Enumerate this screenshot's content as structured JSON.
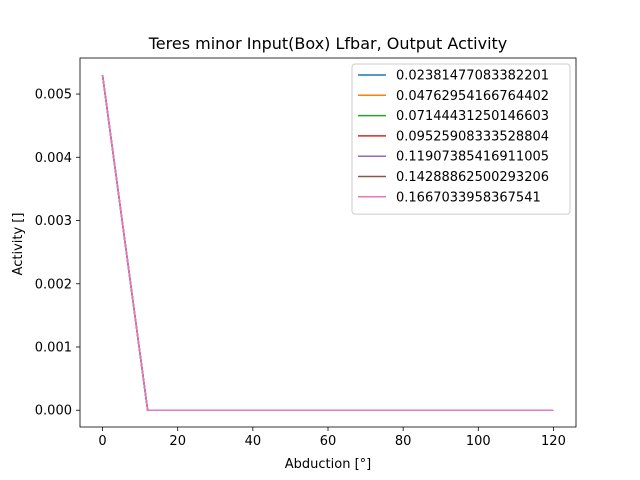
{
  "chart_data": {
    "type": "line",
    "title": "Teres minor Input(Box) Lfbar, Output Activity",
    "xlabel": "Abduction [°]",
    "ylabel": "Activity []",
    "xlim": [
      -6,
      126
    ],
    "ylim": [
      -0.000265,
      0.00557
    ],
    "x_ticks": [
      0,
      20,
      40,
      60,
      80,
      100,
      120
    ],
    "y_ticks": [
      0.0,
      0.001,
      0.002,
      0.003,
      0.004,
      0.005
    ],
    "y_tick_labels": [
      "0.000",
      "0.001",
      "0.002",
      "0.003",
      "0.004",
      "0.005"
    ],
    "grid": false,
    "legend_position": "top-right",
    "x": [
      0,
      12,
      120
    ],
    "series": [
      {
        "name": "0.02381477083382201",
        "color": "#1f77b4",
        "values": [
          0.0053,
          0.0,
          0.0
        ]
      },
      {
        "name": "0.04762954166764402",
        "color": "#ff7f0e",
        "values": [
          0.0053,
          0.0,
          0.0
        ]
      },
      {
        "name": "0.07144431250146603",
        "color": "#2ca02c",
        "values": [
          0.0053,
          0.0,
          0.0
        ]
      },
      {
        "name": "0.09525908333528804",
        "color": "#d62728",
        "values": [
          0.0053,
          0.0,
          0.0
        ]
      },
      {
        "name": "0.11907385416911005",
        "color": "#9467bd",
        "values": [
          0.0053,
          0.0,
          0.0
        ]
      },
      {
        "name": "0.14288862500293206",
        "color": "#8c564b",
        "values": [
          0.0053,
          0.0,
          0.0
        ]
      },
      {
        "name": "0.1667033958367541",
        "color": "#e377c2",
        "values": [
          0.0053,
          0.0,
          0.0
        ]
      }
    ]
  }
}
